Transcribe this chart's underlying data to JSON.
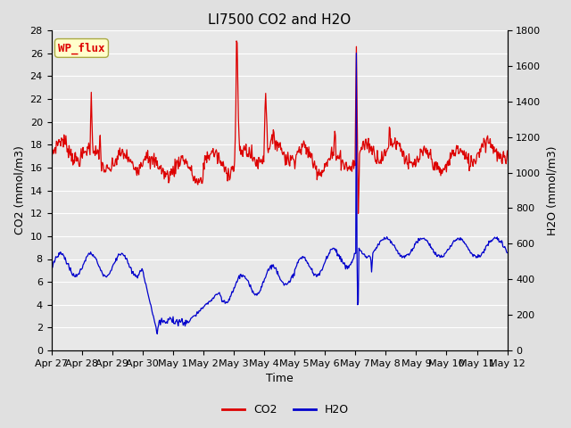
{
  "title": "LI7500 CO2 and H2O",
  "xlabel": "Time",
  "ylabel_left": "CO2 (mmol/m3)",
  "ylabel_right": "H2O (mmol/m3)",
  "ylim_left": [
    0,
    28
  ],
  "ylim_right": [
    0,
    1800
  ],
  "yticks_left": [
    0,
    2,
    4,
    6,
    8,
    10,
    12,
    14,
    16,
    18,
    20,
    22,
    24,
    26,
    28
  ],
  "yticks_right": [
    0,
    200,
    400,
    600,
    800,
    1000,
    1200,
    1400,
    1600,
    1800
  ],
  "xticklabels": [
    "Apr 27",
    "Apr 28",
    "Apr 29",
    "Apr 30",
    "May 1",
    "May 2",
    "May 3",
    "May 4",
    "May 5",
    "May 6",
    "May 7",
    "May 8",
    "May 9",
    "May 10",
    "May 11",
    "May 12"
  ],
  "background_color": "#e0e0e0",
  "plot_bg_color": "#e8e8e8",
  "grid_color": "#ffffff",
  "co2_color": "#dd0000",
  "h2o_color": "#0000cc",
  "annotation_text": "WP_flux",
  "annotation_bg": "#ffffcc",
  "annotation_border": "#aaaa44",
  "title_fontsize": 11,
  "axis_label_fontsize": 9,
  "tick_fontsize": 8,
  "legend_fontsize": 9,
  "linewidth": 0.9
}
